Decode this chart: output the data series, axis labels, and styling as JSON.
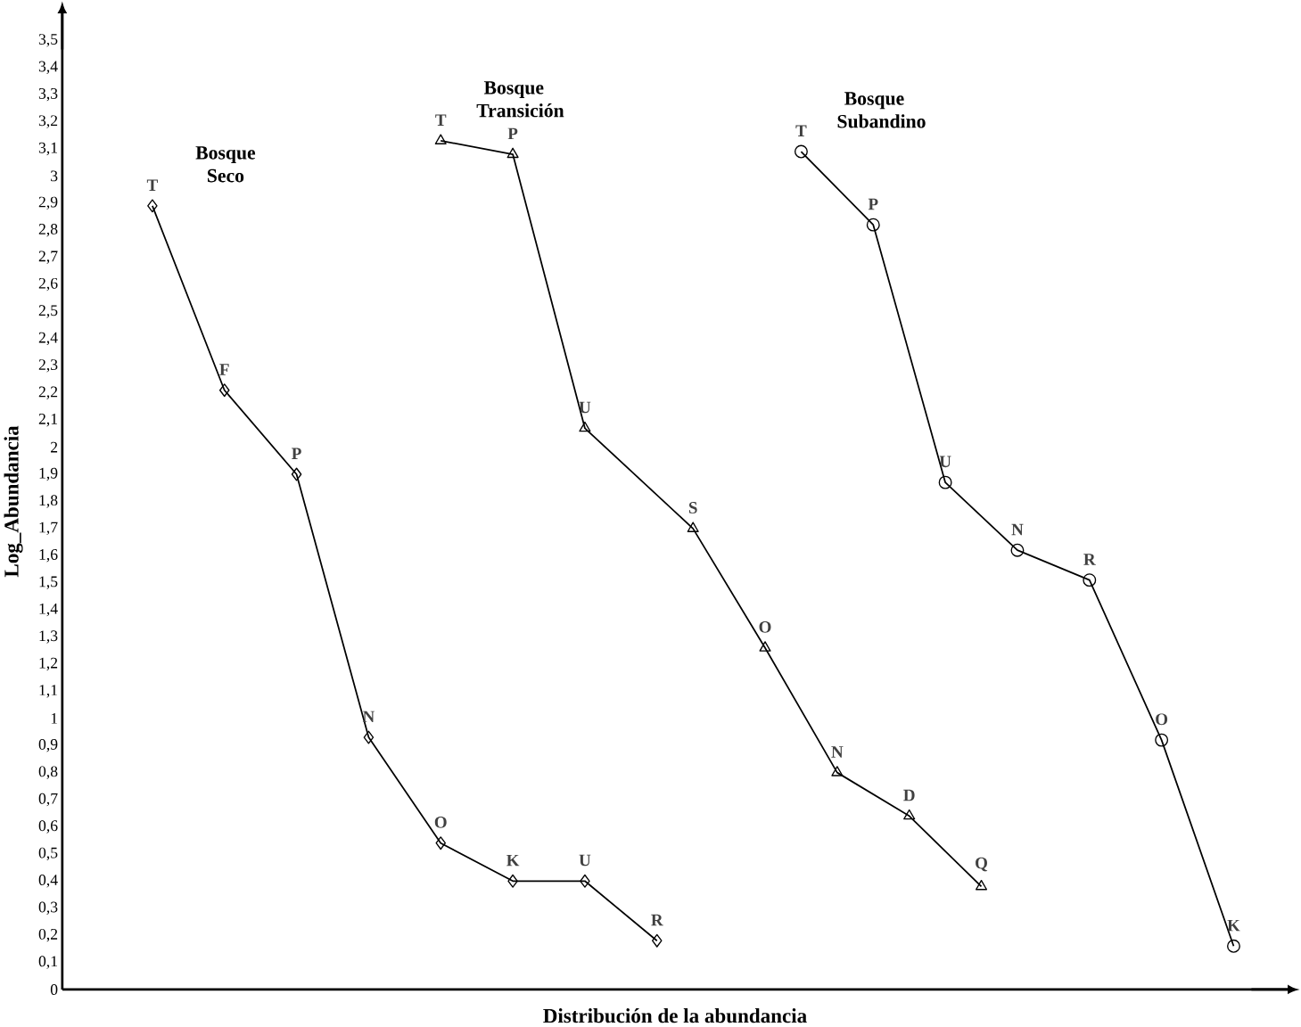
{
  "chart_data": {
    "type": "line",
    "xlabel": "Distribución de la abundancia",
    "ylabel": "Log_Abundancia",
    "categories": [
      null,
      null,
      null,
      null,
      null,
      null,
      null,
      null,
      null,
      null,
      null,
      null,
      null,
      null,
      null,
      null,
      null,
      null,
      null,
      null,
      null,
      null,
      null,
      null,
      null,
      null,
      null,
      null,
      null,
      null,
      null,
      null,
      null,
      null
    ],
    "ylim": [
      0,
      3.6
    ],
    "yticks": [
      {
        "value": 0,
        "label": "0"
      },
      {
        "value": 0.1,
        "label": "0,1"
      },
      {
        "value": 0.2,
        "label": "0,2"
      },
      {
        "value": 0.3,
        "label": "0,3"
      },
      {
        "value": 0.4,
        "label": "0,4"
      },
      {
        "value": 0.5,
        "label": "0,5"
      },
      {
        "value": 0.6,
        "label": "0,6"
      },
      {
        "value": 0.7,
        "label": "0,7"
      },
      {
        "value": 0.8,
        "label": "0,8"
      },
      {
        "value": 0.9,
        "label": "0,9"
      },
      {
        "value": 1,
        "label": "1"
      },
      {
        "value": 1.1,
        "label": "1,1"
      },
      {
        "value": 1.2,
        "label": "1,2"
      },
      {
        "value": 1.3,
        "label": "1,3"
      },
      {
        "value": 1.4,
        "label": "1,4"
      },
      {
        "value": 1.5,
        "label": "1,5"
      },
      {
        "value": 1.6,
        "label": "1,6"
      },
      {
        "value": 1.7,
        "label": "1,7"
      },
      {
        "value": 1.8,
        "label": "1,8"
      },
      {
        "value": 1.9,
        "label": "1,9"
      },
      {
        "value": 2,
        "label": "2"
      },
      {
        "value": 2.1,
        "label": "2,1"
      },
      {
        "value": 2.2,
        "label": "2,2"
      },
      {
        "value": 2.3,
        "label": "2,3"
      },
      {
        "value": 2.4,
        "label": "2,4"
      },
      {
        "value": 2.5,
        "label": "2,5"
      },
      {
        "value": 2.6,
        "label": "2,6"
      },
      {
        "value": 2.7,
        "label": "2,7"
      },
      {
        "value": 2.8,
        "label": "2,8"
      },
      {
        "value": 2.9,
        "label": "2,9"
      },
      {
        "value": 3,
        "label": "3"
      },
      {
        "value": 3.1,
        "label": "3,1"
      },
      {
        "value": 3.2,
        "label": "3,2"
      },
      {
        "value": 3.3,
        "label": "3,3"
      },
      {
        "value": 3.4,
        "label": "3,4"
      },
      {
        "value": 3.5,
        "label": "3,5"
      }
    ],
    "line_style": "solid",
    "series": [
      {
        "name": "Bosque Seco",
        "color": "#000000",
        "marker": "diamond",
        "values": [
          null,
          null,
          2.89,
          null,
          2.21,
          null,
          1.9,
          null,
          0.93,
          null,
          0.54,
          null,
          0.4,
          null,
          0.4,
          null,
          0.18,
          null,
          null,
          null,
          null,
          null,
          null,
          null,
          null,
          null,
          null,
          null,
          null,
          null,
          null,
          null,
          null,
          null
        ],
        "value_labels": [
          null,
          null,
          "T",
          null,
          "F",
          null,
          "P",
          null,
          "N",
          null,
          "O",
          null,
          "K",
          null,
          "U",
          null,
          "R",
          null,
          null,
          null,
          null,
          null,
          null,
          null,
          null,
          null,
          null,
          null,
          null,
          null,
          null,
          null,
          null,
          null
        ]
      },
      {
        "name": "Bosque Transición",
        "color": "#000000",
        "marker": "triangle",
        "values": [
          null,
          null,
          null,
          null,
          null,
          null,
          null,
          null,
          null,
          null,
          3.13,
          null,
          3.08,
          null,
          2.07,
          null,
          null,
          1.7,
          null,
          1.26,
          null,
          0.8,
          null,
          0.64,
          null,
          0.38,
          null,
          null,
          null,
          null,
          null,
          null,
          null,
          null
        ],
        "value_labels": [
          null,
          null,
          null,
          null,
          null,
          null,
          null,
          null,
          null,
          null,
          "T",
          null,
          "P",
          null,
          "U",
          null,
          null,
          "S",
          null,
          "O",
          null,
          "N",
          null,
          "D",
          null,
          "Q",
          null,
          null,
          null,
          null,
          null,
          null,
          null,
          null
        ]
      },
      {
        "name": "Bosque Subandino",
        "color": "#000000",
        "marker": "circle",
        "values": [
          null,
          null,
          null,
          null,
          null,
          null,
          null,
          null,
          null,
          null,
          null,
          null,
          null,
          null,
          null,
          null,
          null,
          null,
          null,
          null,
          3.09,
          null,
          2.82,
          null,
          1.87,
          null,
          1.62,
          null,
          1.51,
          null,
          0.92,
          null,
          0.16,
          null
        ],
        "value_labels": [
          null,
          null,
          null,
          null,
          null,
          null,
          null,
          null,
          null,
          null,
          null,
          null,
          null,
          null,
          null,
          null,
          null,
          null,
          null,
          null,
          "T",
          null,
          "P",
          null,
          "U",
          null,
          "N",
          null,
          "R",
          null,
          "O",
          null,
          "K",
          null
        ]
      }
    ]
  }
}
